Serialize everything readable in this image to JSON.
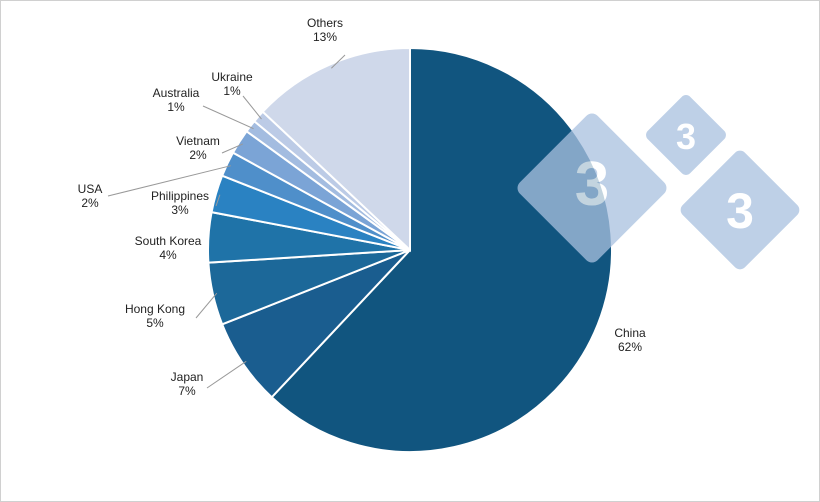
{
  "chart_data": {
    "type": "pie",
    "categories": [
      "China",
      "Japan",
      "Hong Kong",
      "South Korea",
      "Philippines",
      "USA",
      "Vietnam",
      "Australia",
      "Ukraine",
      "Others"
    ],
    "values": [
      62,
      7,
      5,
      4,
      3,
      2,
      2,
      1,
      1,
      13
    ],
    "value_labels": [
      "62%",
      "7%",
      "5%",
      "4%",
      "3%",
      "2%",
      "2%",
      "1%",
      "1%",
      "13%"
    ],
    "colors": [
      "#11557f",
      "#1a5d8f",
      "#1c6899",
      "#1f73a8",
      "#2a82c2",
      "#4f8fca",
      "#7ba4d6",
      "#a3bce0",
      "#bccbe6",
      "#cfd8ea"
    ]
  },
  "watermark": [
    "3",
    "3",
    "3"
  ]
}
